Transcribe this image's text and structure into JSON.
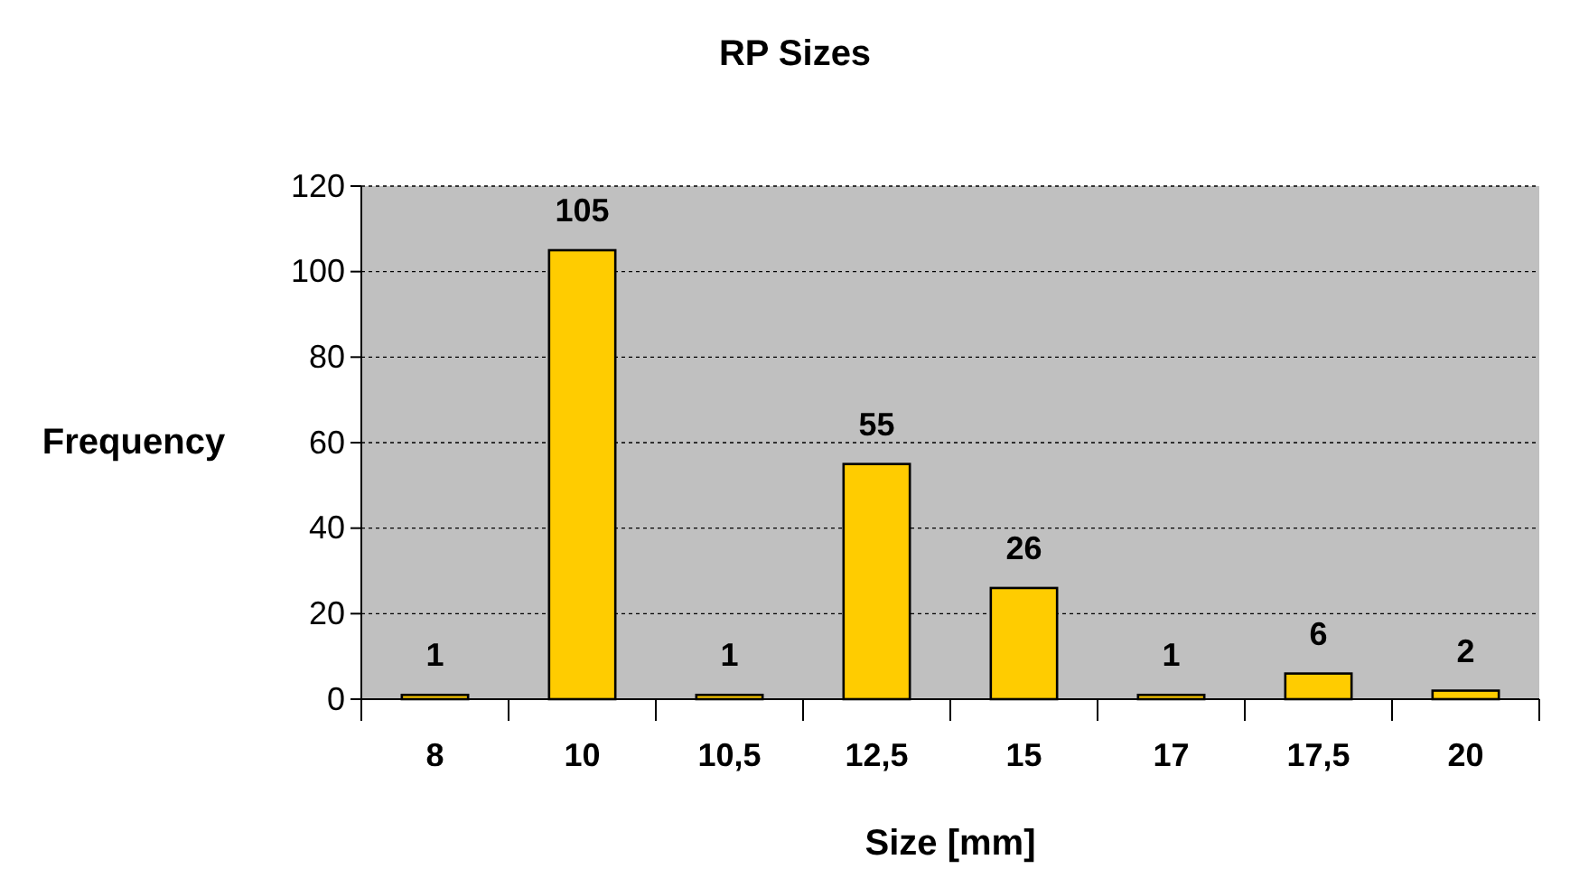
{
  "chart_data": {
    "type": "bar",
    "title": "RP Sizes",
    "xlabel": "Size [mm]",
    "ylabel": "Frequency",
    "categories": [
      "8",
      "10",
      "10,5",
      "12,5",
      "15",
      "17",
      "17,5",
      "20"
    ],
    "values": [
      1,
      105,
      1,
      55,
      26,
      1,
      6,
      2
    ],
    "color": "#ffcc00",
    "ylim": [
      0,
      120
    ],
    "yticks": [
      0,
      20,
      40,
      60,
      80,
      100,
      120
    ],
    "grid": "y",
    "data_labels": true
  }
}
